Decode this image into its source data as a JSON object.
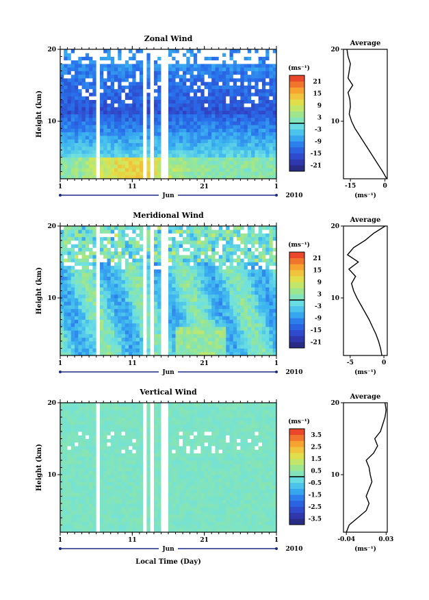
{
  "month_label": "Jun",
  "year_label": "2010",
  "xlabel": "Local Time (Day)",
  "colorbar_unit": "(ms⁻¹)",
  "panels": [
    {
      "title": "Zonal Wind",
      "ylabel": "Height (km)",
      "yticks": [
        "20",
        "10"
      ],
      "xticks": [
        "1",
        "11",
        "21",
        "1"
      ],
      "colorbar_ticks": [
        "21",
        "15",
        "9",
        "3",
        "-3",
        "-9",
        "-15",
        "-21"
      ],
      "avg_title": "Average",
      "avg_xticks": [
        "-15",
        "0"
      ],
      "avg_yticks": [
        "20",
        "10"
      ],
      "avg_unit": "(ms⁻¹)"
    },
    {
      "title": "Meridional Wind",
      "ylabel": "Height (km)",
      "yticks": [
        "20",
        "10"
      ],
      "xticks": [
        "1",
        "11",
        "21",
        "1"
      ],
      "colorbar_ticks": [
        "21",
        "15",
        "9",
        "3",
        "-3",
        "-9",
        "-15",
        "-21"
      ],
      "avg_title": "Average",
      "avg_xticks": [
        "-5",
        "0"
      ],
      "avg_yticks": [
        "20",
        "10"
      ],
      "avg_unit": "(ms⁻¹)"
    },
    {
      "title": "Vertical Wind",
      "ylabel": "Height (km)",
      "yticks": [
        "20",
        "10"
      ],
      "xticks": [
        "1",
        "11",
        "21",
        "1"
      ],
      "colorbar_ticks": [
        "3.5",
        "2.5",
        "1.5",
        "0.5",
        "-0.5",
        "-1.5",
        "-2.5",
        "-3.5"
      ],
      "avg_title": "Average",
      "avg_xticks": [
        "-0.04",
        "0.03"
      ],
      "avg_yticks": [
        "20",
        "10"
      ],
      "avg_unit": "(ms⁻¹)"
    }
  ],
  "chart_data": [
    {
      "type": "heatmap",
      "title": "Zonal Wind",
      "xlabel": "",
      "ylabel": "Height (km)",
      "xlim": [
        1,
        31
      ],
      "ylim": [
        2,
        20
      ],
      "colorbar": {
        "min": -24,
        "max": 24,
        "ticks": [
          21,
          15,
          9,
          3,
          -3,
          -9,
          -15,
          -21
        ]
      },
      "description_values": "day vs height field of zonal wind"
    },
    {
      "type": "line",
      "title": "Average",
      "series": [
        {
          "name": "",
          "x": [
            0.8,
            -1,
            -3,
            -5,
            -7,
            -9,
            -11,
            -13,
            -14.5,
            -15.5,
            -15,
            -15.2,
            -16,
            -14,
            -16,
            -15.5,
            -15,
            -16,
            -16.5
          ],
          "y": [
            2,
            3,
            4,
            5,
            6,
            7,
            8,
            9,
            10,
            11,
            12,
            13,
            14,
            15,
            16,
            17,
            18,
            19,
            20
          ]
        }
      ],
      "xlim": [
        -18,
        1
      ],
      "ylim": [
        2,
        20
      ]
    },
    {
      "type": "heatmap",
      "title": "Meridional Wind",
      "xlabel": "",
      "ylabel": "Height (km)",
      "xlim": [
        1,
        31
      ],
      "ylim": [
        2,
        20
      ],
      "colorbar": {
        "min": -24,
        "max": 24,
        "ticks": [
          21,
          15,
          9,
          3,
          -3,
          -9,
          -15,
          -21
        ]
      }
    },
    {
      "type": "line",
      "title": "Average",
      "series": [
        {
          "name": "",
          "x": [
            -0.3,
            -0.5,
            -0.8,
            -1.2,
            -1.7,
            -2.2,
            -2.8,
            -3.4,
            -4.0,
            -4.5,
            -4.8,
            -4.2,
            -5.2,
            -3.8,
            -5.4,
            -4.5,
            -2.8,
            -1.5,
            0.2
          ],
          "y": [
            2,
            3,
            4,
            5,
            6,
            7,
            8,
            9,
            10,
            11,
            12,
            13,
            14,
            15,
            16,
            17,
            18,
            19,
            20
          ]
        }
      ],
      "xlim": [
        -6,
        0.5
      ],
      "ylim": [
        2,
        20
      ]
    },
    {
      "type": "heatmap",
      "title": "Vertical Wind",
      "xlabel": "Local Time (Day)",
      "ylabel": "Height (km)",
      "xlim": [
        1,
        31
      ],
      "ylim": [
        2,
        20
      ],
      "colorbar": {
        "min": -4,
        "max": 4,
        "ticks": [
          3.5,
          2.5,
          1.5,
          0.5,
          -0.5,
          -1.5,
          -2.5,
          -3.5
        ]
      }
    },
    {
      "type": "line",
      "title": "Average",
      "series": [
        {
          "name": "",
          "x": [
            -0.04,
            -0.035,
            -0.02,
            -0.005,
            0.0,
            -0.005,
            0.0,
            0.005,
            0.002,
            0.0,
            -0.005,
            0.008,
            0.015,
            0.01,
            0.02,
            0.024,
            0.028,
            0.03,
            0.028
          ],
          "y": [
            2,
            3,
            4,
            5,
            6,
            7,
            8,
            9,
            10,
            11,
            12,
            13,
            14,
            15,
            16,
            17,
            18,
            19,
            20
          ]
        }
      ],
      "xlim": [
        -0.045,
        0.032
      ],
      "ylim": [
        2,
        20
      ]
    }
  ]
}
